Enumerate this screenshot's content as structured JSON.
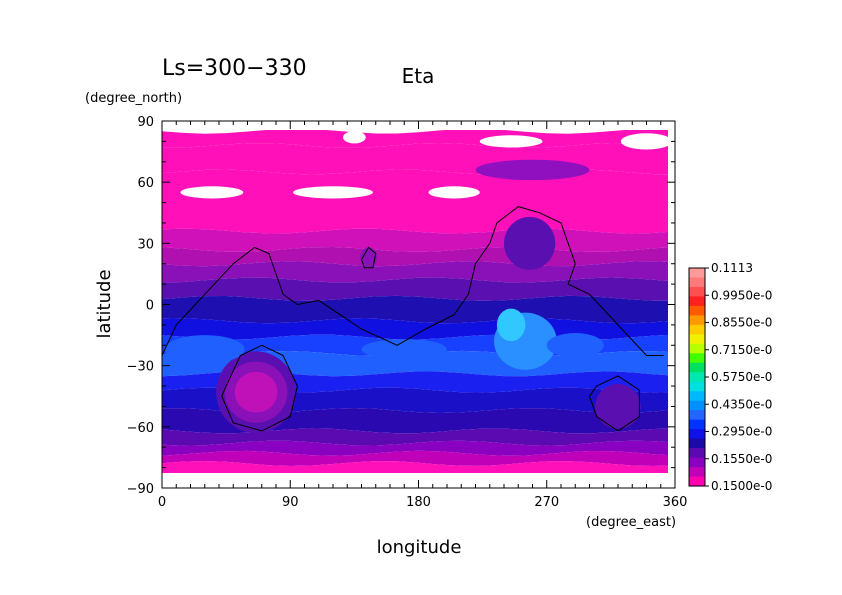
{
  "header": {
    "period_label": "Ls=300−330",
    "variable_title": "Eta"
  },
  "chart_data": {
    "type": "heatmap",
    "title": "Eta",
    "xlabel": "longitude",
    "ylabel": "latitude",
    "x_units": "(degree_east)",
    "y_units": "(degree_north)",
    "xlim": [
      0,
      360
    ],
    "ylim": [
      -90,
      90
    ],
    "x_ticks": [
      {
        "value": 0,
        "label": "0"
      },
      {
        "value": 90,
        "label": "90"
      },
      {
        "value": 180,
        "label": "180"
      },
      {
        "value": 270,
        "label": "270"
      },
      {
        "value": 360,
        "label": "360"
      }
    ],
    "y_ticks": [
      {
        "value": 90,
        "label": "90"
      },
      {
        "value": 60,
        "label": "60"
      },
      {
        "value": 30,
        "label": "30"
      },
      {
        "value": 0,
        "label": "0"
      },
      {
        "value": -30,
        "label": "−30"
      },
      {
        "value": -60,
        "label": "−60"
      },
      {
        "value": -90,
        "label": "−90"
      }
    ],
    "colorbar": {
      "labels": [
        "0.1113",
        "0.9950e-0",
        "0.8550e-0",
        "0.7150e-0",
        "0.5750e-0",
        "0.4350e-0",
        "0.2950e-0",
        "0.1550e-0",
        "0.1500e-0"
      ],
      "colors": [
        "#ff9a9a",
        "#ff7a7a",
        "#ff5050",
        "#ff2020",
        "#ff5a00",
        "#ff9900",
        "#ffcc00",
        "#f0f000",
        "#b8ff00",
        "#40ff00",
        "#00e060",
        "#00e8b0",
        "#00e0e0",
        "#00b8ff",
        "#0090ff",
        "#2266ff",
        "#0033ff",
        "#1010e8",
        "#1a0aa8",
        "#5a0ab0",
        "#8a00c0",
        "#c000b8",
        "#ff00b0"
      ]
    },
    "bands": [
      {
        "lat": [
          85,
          78
        ],
        "color": "#ff10b8"
      },
      {
        "lat": [
          78,
          65
        ],
        "color": "#ff10b8"
      },
      {
        "lat": [
          65,
          36
        ],
        "color": "#ff10b8"
      },
      {
        "lat": [
          36,
          27
        ],
        "color": "#d010b8"
      },
      {
        "lat": [
          27,
          20
        ],
        "color": "#b010b0"
      },
      {
        "lat": [
          20,
          12
        ],
        "color": "#8a10b8"
      },
      {
        "lat": [
          12,
          3
        ],
        "color": "#5a10b0"
      },
      {
        "lat": [
          3,
          -8
        ],
        "color": "#1e10b0"
      },
      {
        "lat": [
          -8,
          -16
        ],
        "color": "#1010e0"
      },
      {
        "lat": [
          -16,
          -24
        ],
        "color": "#1840ff"
      },
      {
        "lat": [
          -24,
          -34
        ],
        "color": "#2060ff"
      },
      {
        "lat": [
          -34,
          -42
        ],
        "color": "#1a20f0"
      },
      {
        "lat": [
          -42,
          -52
        ],
        "color": "#1a10c8"
      },
      {
        "lat": [
          -52,
          -62
        ],
        "color": "#2a0ab0"
      },
      {
        "lat": [
          -62,
          -68
        ],
        "color": "#5a0ab0"
      },
      {
        "lat": [
          -68,
          -73
        ],
        "color": "#8a00c0"
      },
      {
        "lat": [
          -73,
          -78
        ],
        "color": "#c000b8"
      },
      {
        "lat": [
          -78,
          -85
        ],
        "color": "#ff10b8"
      }
    ],
    "blobs": [
      {
        "lon": 66,
        "lat": -43,
        "rlon": 28,
        "rlat": 20,
        "color": "#5a10b0"
      },
      {
        "lon": 66,
        "lat": -43,
        "rlon": 22,
        "rlat": 15,
        "color": "#8a10b8"
      },
      {
        "lon": 66,
        "lat": -43,
        "rlon": 15,
        "rlat": 10,
        "color": "#c010b8"
      },
      {
        "lon": 320,
        "lat": -50,
        "rlon": 16,
        "rlat": 11,
        "color": "#5a10b0"
      },
      {
        "lon": 255,
        "lat": -18,
        "rlon": 22,
        "rlat": 14,
        "color": "#2a90ff"
      },
      {
        "lon": 245,
        "lat": -10,
        "rlon": 10,
        "rlat": 8,
        "color": "#30c8ff"
      },
      {
        "lon": 145,
        "lat": 23,
        "rlon": 6,
        "rlat": 5,
        "color": "#8a10b8"
      },
      {
        "lon": 258,
        "lat": 30,
        "rlon": 18,
        "rlat": 13,
        "color": "#5a10b0"
      },
      {
        "lon": 30,
        "lat": -22,
        "rlon": 28,
        "rlat": 7,
        "color": "#2060ff"
      },
      {
        "lon": 170,
        "lat": -22,
        "rlon": 30,
        "rlat": 5,
        "color": "#2060ff"
      },
      {
        "lon": 290,
        "lat": -20,
        "rlon": 20,
        "rlat": 6,
        "color": "#2060ff"
      }
    ],
    "white_patches": [
      {
        "lon": 340,
        "lat": 80,
        "rlon": 18,
        "rlat": 4
      },
      {
        "lon": 135,
        "lat": 82,
        "rlon": 8,
        "rlat": 3
      },
      {
        "lon": 245,
        "lat": 80,
        "rlon": 22,
        "rlat": 3
      },
      {
        "lon": 35,
        "lat": 55,
        "rlon": 22,
        "rlat": 3
      },
      {
        "lon": 120,
        "lat": 55,
        "rlon": 28,
        "rlat": 3
      },
      {
        "lon": 205,
        "lat": 55,
        "rlon": 18,
        "rlat": 3
      }
    ],
    "lavender_patch": {
      "lon": 260,
      "lat": 66,
      "rlon": 40,
      "rlat": 5,
      "color": "#9010c0"
    },
    "coastline": [
      [
        0,
        -25
      ],
      [
        10,
        -10
      ],
      [
        30,
        5
      ],
      [
        50,
        20
      ],
      [
        65,
        28
      ],
      [
        75,
        25
      ],
      [
        85,
        5
      ],
      [
        95,
        0
      ],
      [
        110,
        2
      ],
      [
        125,
        -5
      ],
      [
        140,
        -12
      ],
      [
        165,
        -20
      ],
      [
        185,
        -12
      ],
      [
        205,
        -5
      ],
      [
        215,
        5
      ],
      [
        220,
        20
      ],
      [
        230,
        30
      ],
      [
        235,
        40
      ],
      [
        250,
        48
      ],
      [
        265,
        45
      ],
      [
        280,
        40
      ],
      [
        290,
        20
      ],
      [
        285,
        10
      ],
      [
        300,
        5
      ],
      [
        320,
        -10
      ],
      [
        340,
        -25
      ],
      [
        352,
        -25
      ]
    ],
    "contours": [
      [
        [
          45,
          -40
        ],
        [
          55,
          -25
        ],
        [
          70,
          -20
        ],
        [
          85,
          -25
        ],
        [
          95,
          -40
        ],
        [
          90,
          -55
        ],
        [
          70,
          -62
        ],
        [
          50,
          -58
        ],
        [
          42,
          -45
        ],
        [
          45,
          -40
        ]
      ],
      [
        [
          305,
          -40
        ],
        [
          320,
          -35
        ],
        [
          335,
          -42
        ],
        [
          335,
          -55
        ],
        [
          320,
          -62
        ],
        [
          305,
          -55
        ],
        [
          300,
          -45
        ],
        [
          305,
          -40
        ]
      ],
      [
        [
          140,
          22
        ],
        [
          145,
          28
        ],
        [
          150,
          25
        ],
        [
          148,
          18
        ],
        [
          142,
          18
        ],
        [
          140,
          22
        ]
      ]
    ]
  }
}
